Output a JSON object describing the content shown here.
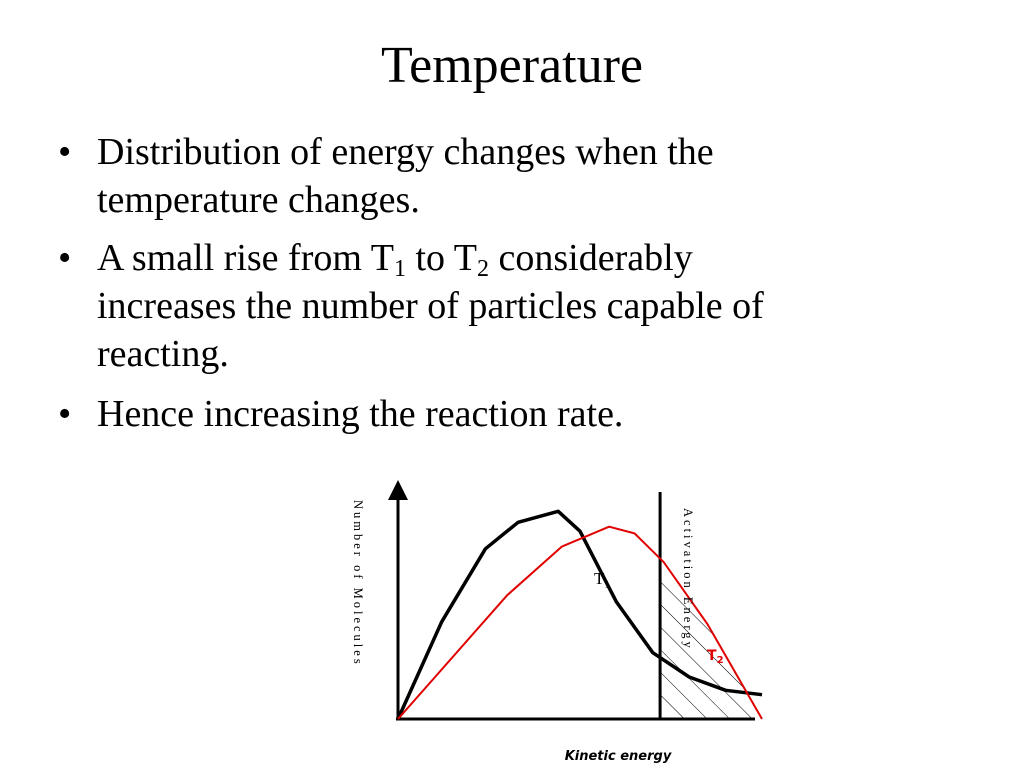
{
  "slide": {
    "title": "Temperature",
    "bullet_char": "•",
    "bullets": [
      {
        "lines": [
          "Distribution of energy changes when the",
          "temperature changes."
        ]
      },
      {
        "line1": {
          "a": "A small rise from T",
          "sub1": "1",
          "b": " to T",
          "sub2": "2",
          "c": " considerably"
        },
        "lines_rest": [
          "increases the number of particles capable of",
          "reacting."
        ]
      },
      {
        "lines": [
          "Hence increasing the reaction rate."
        ]
      }
    ]
  },
  "chart_data": {
    "type": "line",
    "title": "",
    "xlabel": "Kinetic energy",
    "ylabel": "Number of Molecules",
    "xlim": [
      0,
      100
    ],
    "ylim": [
      0,
      100
    ],
    "series": [
      {
        "name": "T",
        "label": "T",
        "label_sub": "1",
        "color": "#000000",
        "x": [
          0,
          12,
          24,
          33,
          44,
          50,
          60,
          70,
          80,
          90,
          100
        ],
        "y": [
          0,
          44,
          77,
          89,
          94,
          85,
          53,
          30,
          19,
          13,
          11
        ]
      },
      {
        "name": "T",
        "label": "T",
        "label_sub": "2",
        "color": "#e00000",
        "x": [
          0,
          15,
          30,
          45,
          58,
          65,
          73,
          85,
          100
        ],
        "y": [
          0,
          28,
          56,
          78,
          87,
          84,
          71,
          43,
          0
        ]
      }
    ],
    "activation_energy": {
      "x": 72,
      "label": "Activation Energy"
    },
    "hatched_region": "area under curves right of activation energy"
  }
}
